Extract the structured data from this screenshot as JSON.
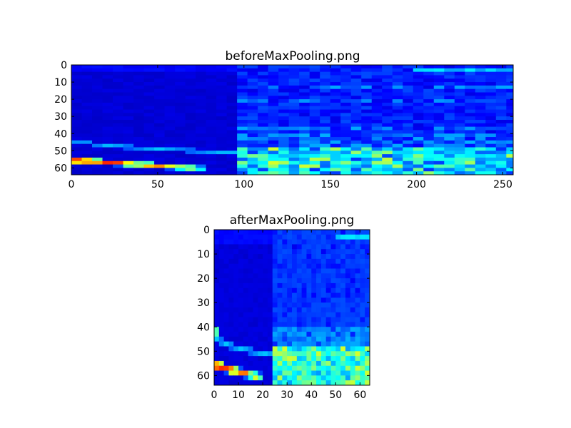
{
  "chart_data": [
    {
      "type": "heatmap",
      "title": "beforeMaxPooling.png",
      "colormap": "jet",
      "x_ticks": [
        0,
        50,
        100,
        150,
        200,
        250
      ],
      "y_ticks": [
        0,
        10,
        20,
        30,
        40,
        50,
        60
      ],
      "xlim": [
        0,
        256
      ],
      "ylim": [
        64,
        0
      ],
      "grid": false,
      "description_values": {
        "rows": 64,
        "cols": 256
      }
    },
    {
      "type": "heatmap",
      "title": "afterMaxPooling.png",
      "colormap": "jet",
      "x_ticks": [
        0,
        10,
        20,
        30,
        40,
        50,
        60
      ],
      "y_ticks": [
        0,
        10,
        20,
        30,
        40,
        50,
        60
      ],
      "xlim": [
        0,
        64
      ],
      "ylim": [
        64,
        0
      ],
      "grid": false,
      "description_values": {
        "rows": 64,
        "cols": 64
      }
    }
  ]
}
